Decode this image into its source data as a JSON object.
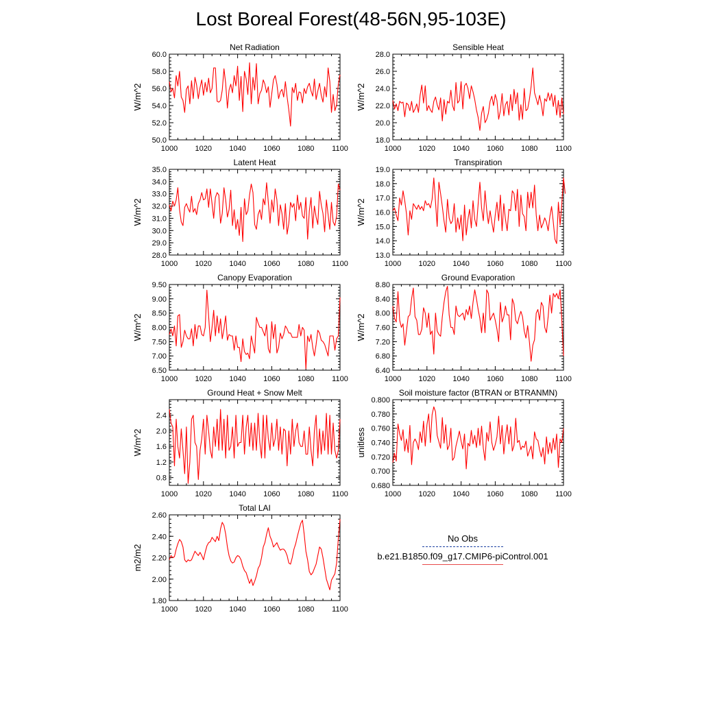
{
  "figure": {
    "title": "Lost Boreal Forest(48-56N,95-103E)"
  },
  "legend": {
    "entries": [
      {
        "label": "No Obs",
        "color": "#1a3fa0",
        "style": "dashed"
      },
      {
        "label": "b.e21.B1850.f09_g17.CMIP6-piControl.001",
        "color": "#e84a4a",
        "style": "solid"
      }
    ]
  },
  "chart_data": [
    {
      "type": "line",
      "title": "Net Radiation",
      "ylabel": "W/m^2",
      "xlim": [
        1000,
        1100
      ],
      "ylim": [
        50.0,
        60.0
      ],
      "xticks": [
        "1000",
        "1020",
        "1040",
        "1060",
        "1080",
        "1100"
      ],
      "yticks": [
        "50.0",
        "52.0",
        "54.0",
        "56.0",
        "58.0",
        "60.0"
      ],
      "color": "#ff0000",
      "x_start": 1000,
      "values": [
        56.8,
        55.6,
        56.0,
        54.9,
        57.5,
        56.3,
        58.0,
        55.0,
        54.6,
        53.2,
        55.9,
        56.3,
        54.2,
        56.9,
        54.8,
        57.3,
        56.4,
        54.8,
        56.1,
        57.0,
        55.2,
        56.7,
        55.6,
        57.2,
        55.5,
        56.0,
        58.4,
        58.4,
        54.5,
        54.4,
        54.6,
        55.8,
        58.3,
        56.6,
        53.7,
        55.8,
        56.5,
        55.5,
        57.5,
        56.3,
        58.6,
        54.6,
        57.4,
        53.3,
        58.0,
        57.1,
        55.3,
        59.0,
        54.2,
        57.3,
        55.8,
        58.9,
        54.2,
        55.4,
        55.8,
        57.0,
        56.5,
        55.5,
        56.2,
        53.8,
        55.4,
        57.0,
        57.5,
        56.5,
        54.8,
        55.6,
        55.9,
        55.0,
        56.8,
        55.0,
        53.5,
        51.6,
        56.1,
        55.5,
        56.6,
        54.6,
        55.6,
        55.5,
        54.3,
        56.0,
        55.4,
        56.2,
        56.6,
        55.7,
        55.1,
        57.1,
        54.7,
        55.7,
        56.6,
        55.2,
        54.4,
        56.2,
        55.0,
        58.4,
        56.8,
        53.2,
        55.3,
        53.4,
        54.1,
        56.5,
        57.6
      ],
      "x_title_mid": 1050
    },
    {
      "type": "line",
      "title": "Sensible Heat",
      "ylabel": "W/m^2",
      "xlim": [
        1000,
        1100
      ],
      "ylim": [
        18.0,
        28.0
      ],
      "xticks": [
        "1000",
        "1020",
        "1040",
        "1060",
        "1080",
        "1100"
      ],
      "yticks": [
        "18.0",
        "20.0",
        "22.0",
        "24.0",
        "26.0",
        "28.0"
      ],
      "color": "#ff0000",
      "x_start": 1000,
      "values": [
        22.6,
        21.6,
        22.2,
        21.4,
        22.5,
        22.3,
        22.4,
        20.7,
        22.3,
        22.1,
        21.4,
        22.5,
        21.2,
        21.6,
        22.2,
        21.2,
        23.2,
        24.4,
        22.3,
        24.3,
        21.4,
        22.0,
        21.5,
        21.2,
        22.5,
        23.0,
        22.1,
        21.5,
        22.9,
        20.2,
        22.7,
        21.0,
        22.5,
        22.3,
        23.8,
        22.0,
        21.4,
        24.7,
        22.3,
        22.6,
        24.8,
        21.6,
        24.3,
        24.6,
        24.0,
        22.8,
        24.3,
        23.6,
        22.7,
        21.5,
        20.6,
        19.1,
        21.1,
        21.9,
        20.0,
        20.4,
        21.1,
        22.5,
        23.1,
        22.0,
        23.3,
        22.6,
        20.4,
        21.4,
        23.4,
        20.8,
        22.1,
        22.5,
        20.9,
        23.3,
        21.4,
        23.9,
        22.2,
        23.5,
        20.3,
        22.1,
        20.4,
        24.0,
        21.4,
        21.6,
        22.7,
        24.2,
        26.4,
        23.5,
        22.8,
        22.1,
        23.2,
        22.2,
        20.8,
        22.8,
        22.5,
        23.5,
        22.6,
        23.4,
        21.9,
        23.2,
        20.9,
        22.6,
        20.6,
        22.9,
        21.0
      ],
      "x_title_mid": 1050
    },
    {
      "type": "line",
      "title": "Latent Heat",
      "ylabel": "W/m^2",
      "xlim": [
        1000,
        1100
      ],
      "ylim": [
        28.0,
        35.0
      ],
      "xticks": [
        "1000",
        "1020",
        "1040",
        "1060",
        "1080",
        "1100"
      ],
      "yticks": [
        "28.0",
        "29.0",
        "30.0",
        "31.0",
        "32.0",
        "33.0",
        "34.0",
        "35.0"
      ],
      "color": "#ff0000",
      "x_start": 1000,
      "values": [
        32.1,
        31.6,
        32.4,
        32.0,
        32.5,
        33.5,
        31.7,
        30.7,
        30.4,
        31.9,
        32.2,
        31.8,
        31.5,
        32.8,
        31.5,
        31.8,
        31.3,
        32.2,
        32.5,
        33.1,
        32.5,
        32.6,
        33.4,
        31.9,
        33.4,
        32.2,
        31.0,
        32.7,
        33.1,
        32.9,
        30.6,
        31.4,
        33.5,
        32.5,
        31.1,
        31.7,
        33.3,
        30.4,
        31.7,
        30.1,
        30.9,
        29.6,
        31.9,
        29.1,
        32.6,
        31.3,
        31.6,
        32.9,
        33.8,
        33.1,
        30.5,
        30.1,
        31.3,
        31.7,
        30.9,
        32.6,
        32.1,
        33.9,
        32.3,
        30.6,
        32.5,
        31.5,
        33.4,
        32.5,
        30.4,
        32.1,
        31.4,
        30.1,
        32.2,
        29.7,
        30.6,
        32.3,
        31.9,
        32.2,
        30.8,
        32.9,
        31.7,
        32.3,
        31.2,
        31.0,
        32.7,
        29.3,
        31.6,
        32.7,
        30.2,
        32.0,
        31.1,
        30.5,
        33.2,
        32.1,
        31.4,
        29.9,
        32.5,
        31.3,
        30.1,
        32.3,
        30.7,
        30.4,
        31.2,
        33.8,
        33.3
      ],
      "x_title_mid": 1050
    },
    {
      "type": "line",
      "title": "Transpiration",
      "ylabel": "W/m^2",
      "xlim": [
        1000,
        1100
      ],
      "ylim": [
        13.0,
        19.0
      ],
      "xticks": [
        "1000",
        "1020",
        "1040",
        "1060",
        "1080",
        "1100"
      ],
      "yticks": [
        "13.0",
        "14.0",
        "15.0",
        "16.0",
        "17.0",
        "18.0",
        "19.0"
      ],
      "color": "#ff0000",
      "x_start": 1000,
      "values": [
        16.1,
        16.3,
        15.8,
        15.4,
        17.0,
        16.5,
        17.5,
        16.8,
        15.9,
        14.4,
        16.1,
        15.5,
        16.6,
        16.4,
        16.2,
        16.5,
        16.2,
        16.4,
        16.1,
        16.8,
        16.5,
        16.6,
        16.3,
        16.9,
        18.4,
        16.7,
        15.0,
        18.1,
        17.3,
        16.4,
        15.4,
        14.6,
        16.9,
        15.6,
        15.2,
        15.4,
        16.6,
        14.6,
        15.6,
        14.8,
        15.8,
        14.0,
        16.5,
        14.4,
        15.5,
        16.2,
        14.9,
        16.8,
        15.5,
        15.0,
        16.6,
        18.1,
        16.3,
        15.4,
        17.5,
        16.1,
        15.2,
        16.1,
        15.3,
        14.6,
        15.8,
        16.7,
        15.4,
        17.2,
        14.7,
        16.6,
        15.5,
        14.7,
        16.2,
        16.1,
        17.5,
        17.3,
        16.1,
        17.6,
        15.0,
        17.2,
        15.9,
        15.7,
        14.7,
        17.4,
        16.3,
        17.4,
        16.3,
        17.9,
        15.8,
        14.7,
        15.8,
        14.9,
        15.2,
        15.6,
        15.3,
        14.7,
        15.7,
        16.4,
        15.3,
        14.1,
        13.8,
        16.7,
        15.1,
        16.6,
        18.4,
        17.3
      ],
      "x_title_mid": 1050
    },
    {
      "type": "line",
      "title": "Canopy Evaporation",
      "ylabel": "W/m^2",
      "xlim": [
        1000,
        1100
      ],
      "ylim": [
        6.5,
        9.5
      ],
      "xticks": [
        "1000",
        "1020",
        "1040",
        "1060",
        "1080",
        "1100"
      ],
      "yticks": [
        "6.50",
        "7.00",
        "7.50",
        "8.00",
        "8.50",
        "9.00",
        "9.50"
      ],
      "color": "#ff0000",
      "x_start": 1000,
      "values": [
        7.75,
        7.95,
        7.7,
        8.05,
        7.35,
        8.4,
        8.45,
        7.3,
        7.5,
        7.9,
        7.7,
        7.6,
        7.6,
        7.95,
        7.35,
        8.1,
        7.6,
        8.05,
        8.05,
        7.75,
        7.7,
        8.0,
        9.3,
        8.4,
        7.5,
        8.0,
        8.6,
        7.7,
        8.4,
        7.8,
        8.3,
        7.6,
        7.95,
        8.4,
        7.55,
        7.75,
        7.7,
        7.7,
        7.2,
        7.7,
        7.3,
        7.3,
        6.8,
        7.6,
        7.15,
        7.05,
        7.1,
        6.9,
        7.7,
        7.4,
        7.1,
        8.35,
        8.15,
        8.0,
        8.0,
        7.85,
        7.7,
        8.1,
        7.25,
        7.1,
        8.2,
        7.6,
        8.1,
        7.1,
        7.3,
        7.8,
        7.6,
        7.75,
        8.05,
        7.95,
        7.8,
        7.8,
        7.65,
        7.65,
        7.65,
        7.65,
        8.1,
        7.7,
        8.0,
        7.9,
        6.55,
        7.7,
        7.5,
        7.75,
        7.3,
        7.0,
        7.4,
        7.9,
        7.8,
        7.55,
        7.5,
        7.4,
        7.2,
        7.0,
        7.7,
        7.7,
        7.7,
        7.2,
        7.6,
        7.7,
        9.05
      ],
      "x_title_mid": 1050
    },
    {
      "type": "line",
      "title": "Ground Evaporation",
      "ylabel": "W/m^2",
      "xlim": [
        1000,
        1100
      ],
      "ylim": [
        6.4,
        8.8
      ],
      "xticks": [
        "1000",
        "1020",
        "1040",
        "1060",
        "1080",
        "1100"
      ],
      "yticks": [
        "6.40",
        "6.80",
        "7.20",
        "7.60",
        "8.00",
        "8.40",
        "8.80"
      ],
      "color": "#ff0000",
      "x_start": 1000,
      "values": [
        8.2,
        7.85,
        7.75,
        8.6,
        7.8,
        7.6,
        7.7,
        7.1,
        7.5,
        7.9,
        7.95,
        8.4,
        8.7,
        7.9,
        7.8,
        7.4,
        7.4,
        7.55,
        8.15,
        8.0,
        7.6,
        8.0,
        7.4,
        7.5,
        6.85,
        8.0,
        7.5,
        7.4,
        7.35,
        7.9,
        8.3,
        8.6,
        8.75,
        7.95,
        7.6,
        7.6,
        7.4,
        8.2,
        7.95,
        7.9,
        7.95,
        8.0,
        7.8,
        8.1,
        7.95,
        8.2,
        7.85,
        8.3,
        8.65,
        8.4,
        8.1,
        7.85,
        7.45,
        8.0,
        7.45,
        8.65,
        8.55,
        7.8,
        7.9,
        8.0,
        7.8,
        7.55,
        7.2,
        8.3,
        7.75,
        7.9,
        8.2,
        7.95,
        7.95,
        7.25,
        8.4,
        8.25,
        7.8,
        7.7,
        7.9,
        8.05,
        7.9,
        7.5,
        7.3,
        7.65,
        7.2,
        6.65,
        7.1,
        7.25,
        8.0,
        8.1,
        7.8,
        8.3,
        8.2,
        7.6,
        7.45,
        7.9,
        8.5,
        8.0,
        8.55,
        8.45,
        8.55,
        8.4,
        8.65,
        7.8,
        6.8
      ],
      "x_title_mid": 1050
    },
    {
      "type": "line",
      "title": "Ground Heat + Snow Melt",
      "ylabel": "W/m^2",
      "xlim": [
        1000,
        1100
      ],
      "ylim": [
        0.6,
        2.8
      ],
      "xticks": [
        "1000",
        "1020",
        "1040",
        "1060",
        "1080",
        "1100"
      ],
      "yticks": [
        "0.8",
        "1.2",
        "1.6",
        "2.0",
        "2.4"
      ],
      "color": "#ff0000",
      "x_start": 1000,
      "values": [
        2.55,
        2.2,
        2.1,
        1.1,
        2.3,
        1.6,
        1.3,
        2.05,
        1.5,
        0.9,
        2.1,
        0.65,
        1.2,
        2.3,
        2.4,
        1.7,
        1.6,
        0.75,
        1.5,
        1.8,
        2.3,
        1.4,
        2.4,
        2.0,
        1.5,
        1.3,
        2.1,
        1.6,
        2.3,
        1.5,
        2.55,
        1.5,
        2.3,
        1.3,
        2.4,
        1.5,
        1.6,
        2.1,
        1.3,
        2.4,
        1.6,
        1.7,
        1.7,
        2.4,
        1.4,
        2.1,
        2.4,
        1.6,
        2.2,
        1.5,
        2.2,
        1.5,
        2.45,
        1.7,
        1.3,
        2.4,
        1.3,
        2.4,
        1.8,
        1.5,
        2.2,
        1.6,
        1.8,
        2.3,
        1.5,
        2.1,
        1.4,
        2.05,
        2.0,
        1.1,
        2.0,
        1.4,
        2.3,
        1.6,
        2.0,
        2.2,
        1.7,
        1.6,
        1.6,
        2.0,
        1.4,
        1.4,
        2.1,
        1.5,
        1.1,
        2.0,
        2.4,
        1.3,
        2.05,
        1.4,
        2.0,
        1.5,
        2.45,
        1.4,
        2.4,
        1.4,
        2.2,
        1.5,
        1.3,
        1.5,
        2.3
      ],
      "x_title_mid": 1050
    },
    {
      "type": "line",
      "title": "Soil moisture factor (BTRAN or BTRANMN)",
      "ylabel": "unitless",
      "xlim": [
        1000,
        1100
      ],
      "ylim": [
        0.68,
        0.8
      ],
      "xticks": [
        "1000",
        "1020",
        "1040",
        "1060",
        "1080",
        "1100"
      ],
      "yticks": [
        "0.680",
        "0.700",
        "0.720",
        "0.740",
        "0.760",
        "0.780",
        "0.800"
      ],
      "color": "#ff0000",
      "x_start": 1000,
      "values": [
        0.712,
        0.725,
        0.714,
        0.766,
        0.752,
        0.743,
        0.758,
        0.728,
        0.745,
        0.726,
        0.764,
        0.709,
        0.74,
        0.745,
        0.74,
        0.73,
        0.755,
        0.74,
        0.77,
        0.735,
        0.765,
        0.78,
        0.74,
        0.779,
        0.79,
        0.783,
        0.75,
        0.741,
        0.732,
        0.775,
        0.739,
        0.765,
        0.73,
        0.736,
        0.76,
        0.715,
        0.719,
        0.735,
        0.745,
        0.756,
        0.742,
        0.731,
        0.752,
        0.703,
        0.739,
        0.735,
        0.757,
        0.738,
        0.75,
        0.733,
        0.76,
        0.736,
        0.763,
        0.732,
        0.715,
        0.754,
        0.742,
        0.769,
        0.74,
        0.729,
        0.737,
        0.748,
        0.777,
        0.738,
        0.764,
        0.724,
        0.747,
        0.765,
        0.738,
        0.762,
        0.728,
        0.736,
        0.774,
        0.74,
        0.743,
        0.73,
        0.735,
        0.733,
        0.742,
        0.721,
        0.728,
        0.735,
        0.717,
        0.755,
        0.745,
        0.743,
        0.73,
        0.72,
        0.733,
        0.71,
        0.748,
        0.724,
        0.74,
        0.725,
        0.746,
        0.73,
        0.752,
        0.705,
        0.745,
        0.74,
        0.76
      ]
    },
    {
      "type": "line",
      "title": "Total LAI",
      "ylabel": "m2/m2",
      "xlim": [
        1000,
        1100
      ],
      "ylim": [
        1.8,
        2.6
      ],
      "xticks": [
        "1000",
        "1020",
        "1040",
        "1060",
        "1080",
        "1100"
      ],
      "yticks": [
        "1.80",
        "2.00",
        "2.20",
        "2.40",
        "2.60"
      ],
      "color": "#ff0000",
      "x_start": 1000,
      "values": [
        2.18,
        2.22,
        2.2,
        2.21,
        2.28,
        2.33,
        2.37,
        2.35,
        2.3,
        2.18,
        2.16,
        2.18,
        2.17,
        2.18,
        2.22,
        2.26,
        2.24,
        2.22,
        2.25,
        2.22,
        2.18,
        2.25,
        2.31,
        2.34,
        2.35,
        2.39,
        2.37,
        2.35,
        2.4,
        2.36,
        2.47,
        2.53,
        2.5,
        2.42,
        2.3,
        2.22,
        2.17,
        2.15,
        2.16,
        2.2,
        2.22,
        2.21,
        2.18,
        2.12,
        2.08,
        2.06,
        2.01,
        1.96,
        2.0,
        1.94,
        1.98,
        2.03,
        2.1,
        2.13,
        2.2,
        2.3,
        2.34,
        2.42,
        2.48,
        2.4,
        2.36,
        2.3,
        2.32,
        2.34,
        2.3,
        2.27,
        2.28,
        2.28,
        2.26,
        2.22,
        2.15,
        2.14,
        2.2,
        2.28,
        2.33,
        2.4,
        2.46,
        2.52,
        2.55,
        2.42,
        2.26,
        2.18,
        2.07,
        2.04,
        2.06,
        2.1,
        2.14,
        2.22,
        2.3,
        2.28,
        2.2,
        2.1,
        2.0,
        1.95,
        1.9,
        1.99,
        2.02,
        2.05,
        2.15,
        2.38,
        2.56
      ]
    }
  ]
}
